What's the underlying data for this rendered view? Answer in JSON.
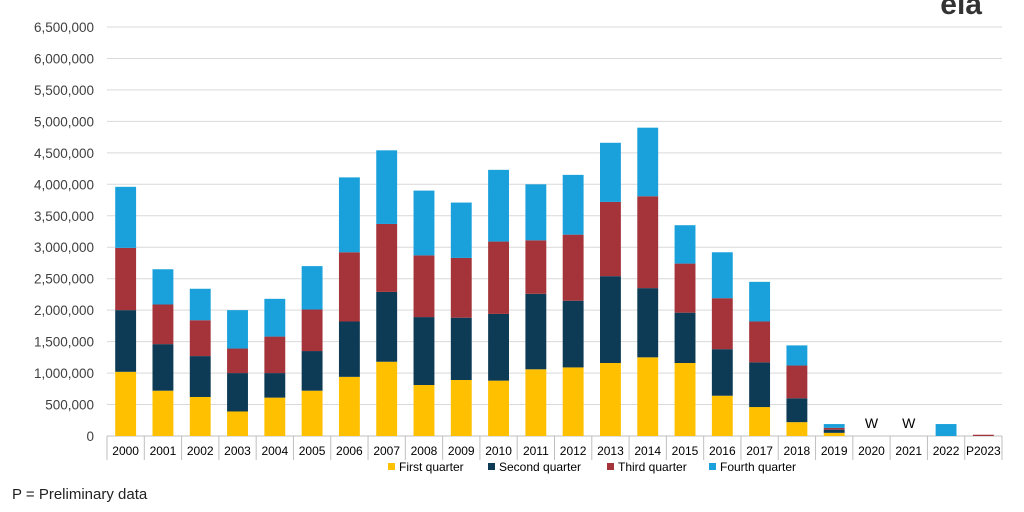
{
  "logo_text": "eia",
  "footnote": "P = Preliminary data",
  "chart_data": {
    "type": "bar",
    "stacked": true,
    "title": "",
    "xlabel": "",
    "ylabel": "",
    "ylim": [
      0,
      6500000
    ],
    "yticks": [
      0,
      500000,
      1000000,
      1500000,
      2000000,
      2500000,
      3000000,
      3500000,
      4000000,
      4500000,
      5000000,
      5500000,
      6000000,
      6500000
    ],
    "ytick_labels": [
      "0",
      "500,000",
      "1,000,000",
      "1,500,000",
      "2,000,000",
      "2,500,000",
      "3,000,000",
      "3,500,000",
      "4,000,000",
      "4,500,000",
      "5,000,000",
      "5,500,000",
      "6,000,000",
      "6,500,000"
    ],
    "grid": true,
    "legend_position": "bottom",
    "categories": [
      "2000",
      "2001",
      "2002",
      "2003",
      "2004",
      "2005",
      "2006",
      "2007",
      "2008",
      "2009",
      "2010",
      "2011",
      "2012",
      "2013",
      "2014",
      "2015",
      "2016",
      "2017",
      "2018",
      "2019",
      "2020",
      "2021",
      "2022",
      "P2023"
    ],
    "series": [
      {
        "name": "First quarter",
        "color": "#FFC000",
        "values": [
          1020000,
          720000,
          620000,
          390000,
          610000,
          720000,
          940000,
          1180000,
          810000,
          890000,
          880000,
          1060000,
          1090000,
          1160000,
          1250000,
          1160000,
          640000,
          460000,
          220000,
          50000,
          0,
          0,
          0,
          0
        ]
      },
      {
        "name": "Second quarter",
        "color": "#0D3A55",
        "values": [
          980000,
          740000,
          650000,
          610000,
          390000,
          630000,
          880000,
          1110000,
          1080000,
          990000,
          1060000,
          1200000,
          1060000,
          1380000,
          1100000,
          800000,
          740000,
          710000,
          380000,
          50000,
          0,
          0,
          0,
          0
        ]
      },
      {
        "name": "Third quarter",
        "color": "#A4343A",
        "values": [
          990000,
          630000,
          570000,
          390000,
          580000,
          660000,
          1100000,
          1080000,
          980000,
          950000,
          1150000,
          850000,
          1050000,
          1180000,
          1460000,
          780000,
          810000,
          650000,
          520000,
          30000,
          0,
          0,
          0,
          20000
        ]
      },
      {
        "name": "Fourth quarter",
        "color": "#1AA1DB",
        "values": [
          970000,
          560000,
          500000,
          610000,
          600000,
          690000,
          1190000,
          1170000,
          1030000,
          880000,
          1140000,
          890000,
          950000,
          940000,
          1090000,
          610000,
          730000,
          630000,
          320000,
          60000,
          0,
          0,
          190000,
          0
        ]
      }
    ],
    "annotations": [
      {
        "category": "2020",
        "text": "W"
      },
      {
        "category": "2021",
        "text": "W"
      }
    ]
  }
}
